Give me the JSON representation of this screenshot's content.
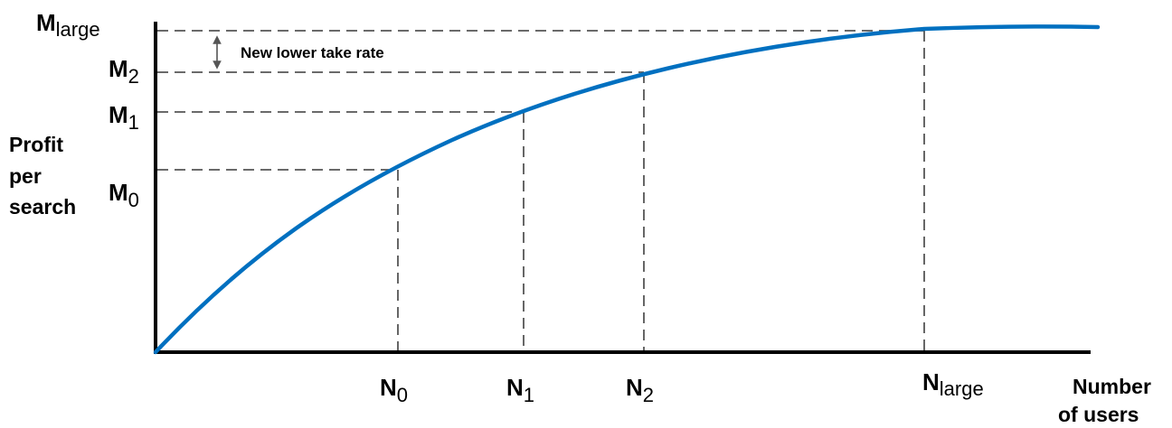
{
  "diagram": {
    "curve_color": "#0070c0",
    "axis_color": "#000000",
    "guide_color": "#555555",
    "y_axis": {
      "title_lines": [
        "Profit",
        "per",
        "search"
      ],
      "ticks": [
        {
          "id": "m0",
          "base": "M",
          "sub": "0"
        },
        {
          "id": "m1",
          "base": "M",
          "sub": "1"
        },
        {
          "id": "m2",
          "base": "M",
          "sub": "2"
        },
        {
          "id": "mlarge",
          "base": "M",
          "sub": "large"
        }
      ]
    },
    "x_axis": {
      "title_lines": [
        "Number",
        "of users"
      ],
      "ticks": [
        {
          "id": "n0",
          "base": "N",
          "sub": "0"
        },
        {
          "id": "n1",
          "base": "N",
          "sub": "1"
        },
        {
          "id": "n2",
          "base": "N",
          "sub": "2"
        },
        {
          "id": "nlarge",
          "base": "N",
          "sub": "large"
        }
      ]
    },
    "annotation": "New lower take rate",
    "annotation_icon": "double-arrow-icon"
  }
}
